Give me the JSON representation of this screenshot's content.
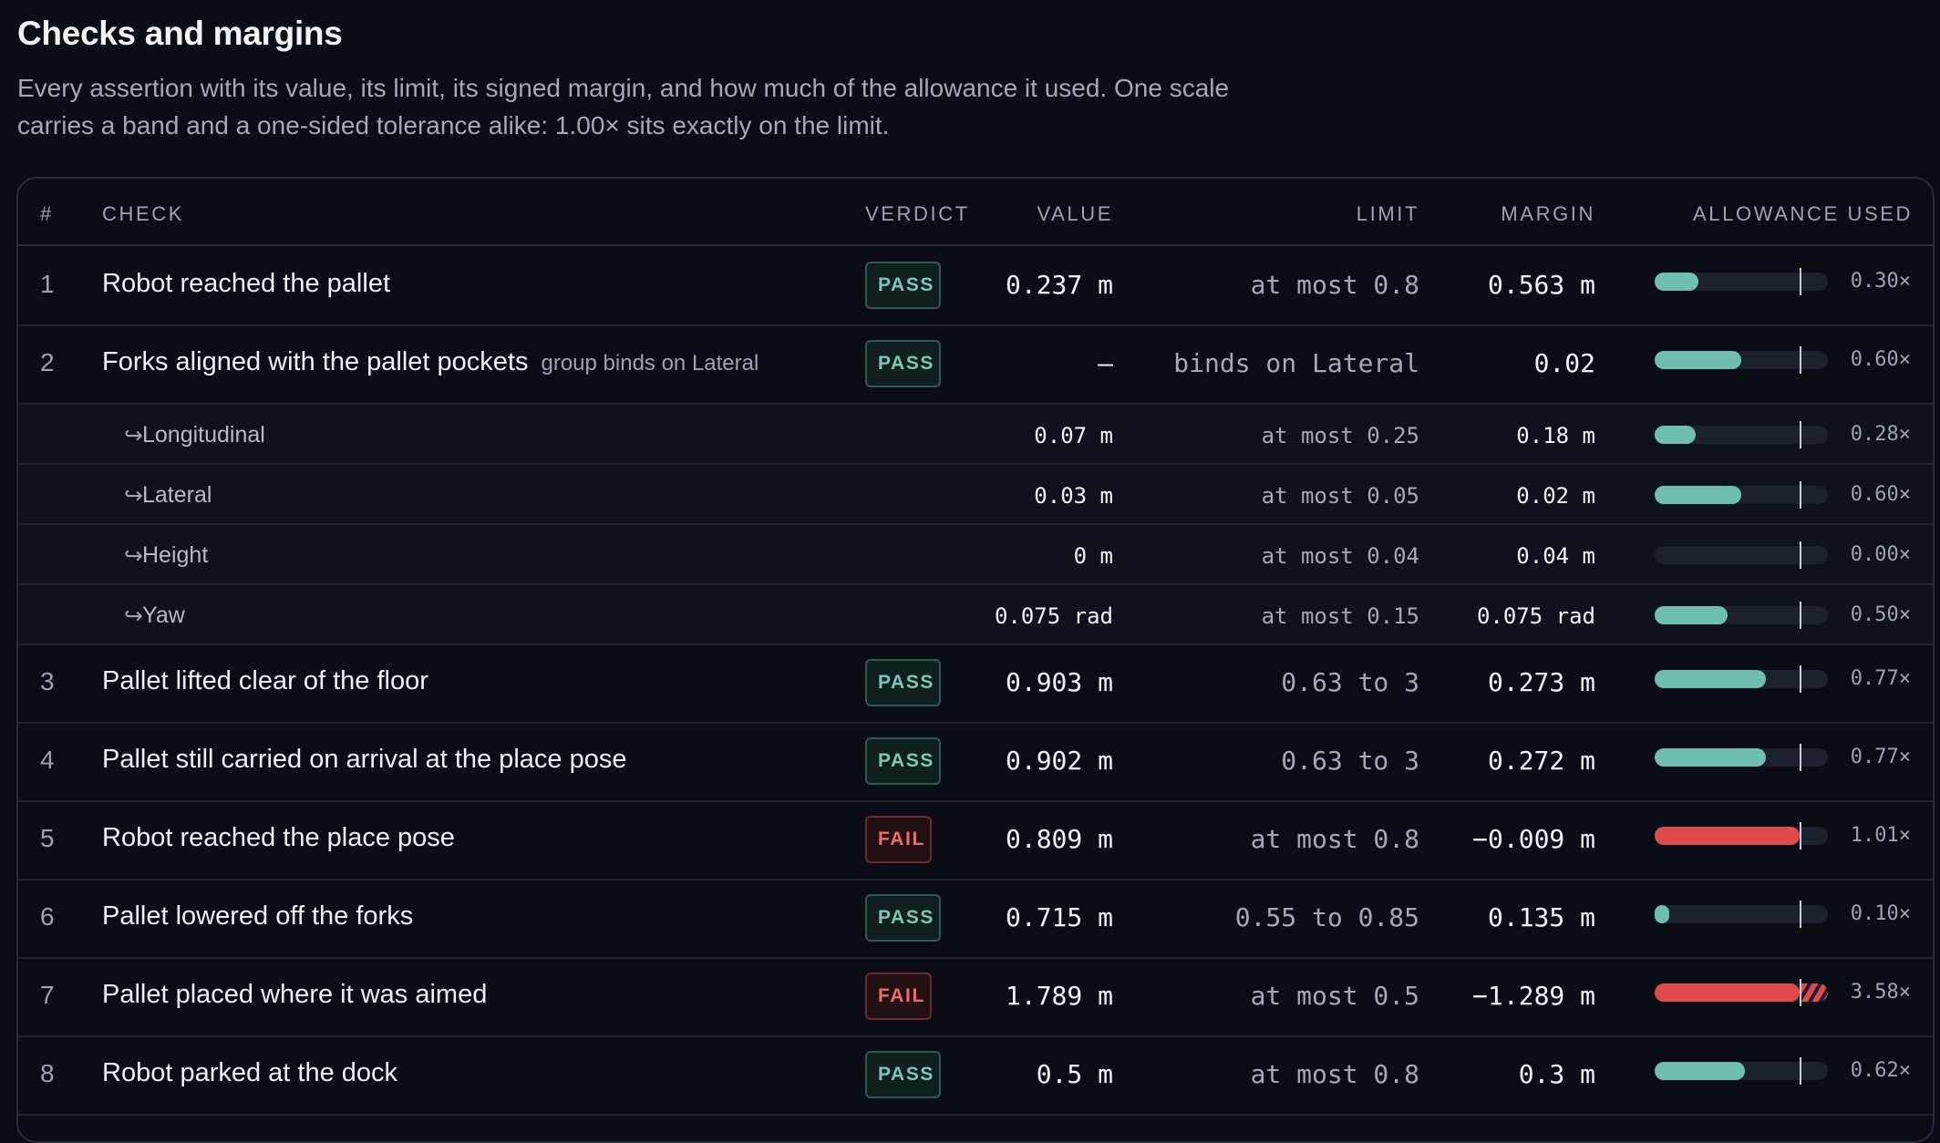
{
  "title": "Checks and margins",
  "subtitle": "Every assertion with its value, its limit, its signed margin, and how much of the allowance it used. One scale carries a band and a one-sided tolerance alike: 1.00× sits exactly on the limit.",
  "columns": {
    "num": "#",
    "check": "CHECK",
    "verdict": "VERDICT",
    "value": "VALUE",
    "limit": "LIMIT",
    "margin": "MARGIN",
    "allowance": "ALLOWANCE USED"
  },
  "rows": [
    {
      "num": "1",
      "name": "Robot reached the pallet",
      "verdict": "PASS",
      "value": "0.237 m",
      "limit": "at most 0.8",
      "margin": "0.563 m",
      "allowance": 0.3,
      "allowance_label": "0.30×"
    },
    {
      "num": "2",
      "name": "Forks aligned with the pallet pockets",
      "note": "group binds on Lateral",
      "verdict": "PASS",
      "value": "—",
      "limit": "binds on Lateral",
      "margin": "0.02",
      "allowance": 0.6,
      "allowance_label": "0.60×",
      "subchecks": [
        {
          "name": "Longitudinal",
          "value": "0.07 m",
          "limit": "at most 0.25",
          "margin": "0.18 m",
          "allowance": 0.28,
          "allowance_label": "0.28×"
        },
        {
          "name": "Lateral",
          "value": "0.03 m",
          "limit": "at most 0.05",
          "margin": "0.02 m",
          "allowance": 0.6,
          "allowance_label": "0.60×"
        },
        {
          "name": "Height",
          "value": "0 m",
          "limit": "at most 0.04",
          "margin": "0.04 m",
          "allowance": 0.0,
          "allowance_label": "0.00×"
        },
        {
          "name": "Yaw",
          "value": "0.075 rad",
          "limit": "at most 0.15",
          "margin": "0.075 rad",
          "allowance": 0.5,
          "allowance_label": "0.50×"
        }
      ]
    },
    {
      "num": "3",
      "name": "Pallet lifted clear of the floor",
      "verdict": "PASS",
      "value": "0.903 m",
      "limit": "0.63 to 3",
      "margin": "0.273 m",
      "allowance": 0.77,
      "allowance_label": "0.77×"
    },
    {
      "num": "4",
      "name": "Pallet still carried on arrival at the place pose",
      "verdict": "PASS",
      "value": "0.902 m",
      "limit": "0.63 to 3",
      "margin": "0.272 m",
      "allowance": 0.77,
      "allowance_label": "0.77×"
    },
    {
      "num": "5",
      "name": "Robot reached the place pose",
      "verdict": "FAIL",
      "value": "0.809 m",
      "limit": "at most 0.8",
      "margin": "−0.009 m",
      "allowance": 1.01,
      "allowance_label": "1.01×"
    },
    {
      "num": "6",
      "name": "Pallet lowered off the forks",
      "verdict": "PASS",
      "value": "0.715 m",
      "limit": "0.55 to 0.85",
      "margin": "0.135 m",
      "allowance": 0.1,
      "allowance_label": "0.10×"
    },
    {
      "num": "7",
      "name": "Pallet placed where it was aimed",
      "verdict": "FAIL",
      "value": "1.789 m",
      "limit": "at most 0.5",
      "margin": "−1.289 m",
      "allowance": 3.58,
      "allowance_label": "3.58×"
    },
    {
      "num": "8",
      "name": "Robot parked at the dock",
      "verdict": "PASS",
      "value": "0.5 m",
      "limit": "at most 0.8",
      "margin": "0.3 m",
      "allowance": 0.62,
      "allowance_label": "0.62×"
    }
  ],
  "colors": {
    "pass": "#6ebfb2",
    "fail": "#e04a4a",
    "background": "#0a0d16"
  }
}
